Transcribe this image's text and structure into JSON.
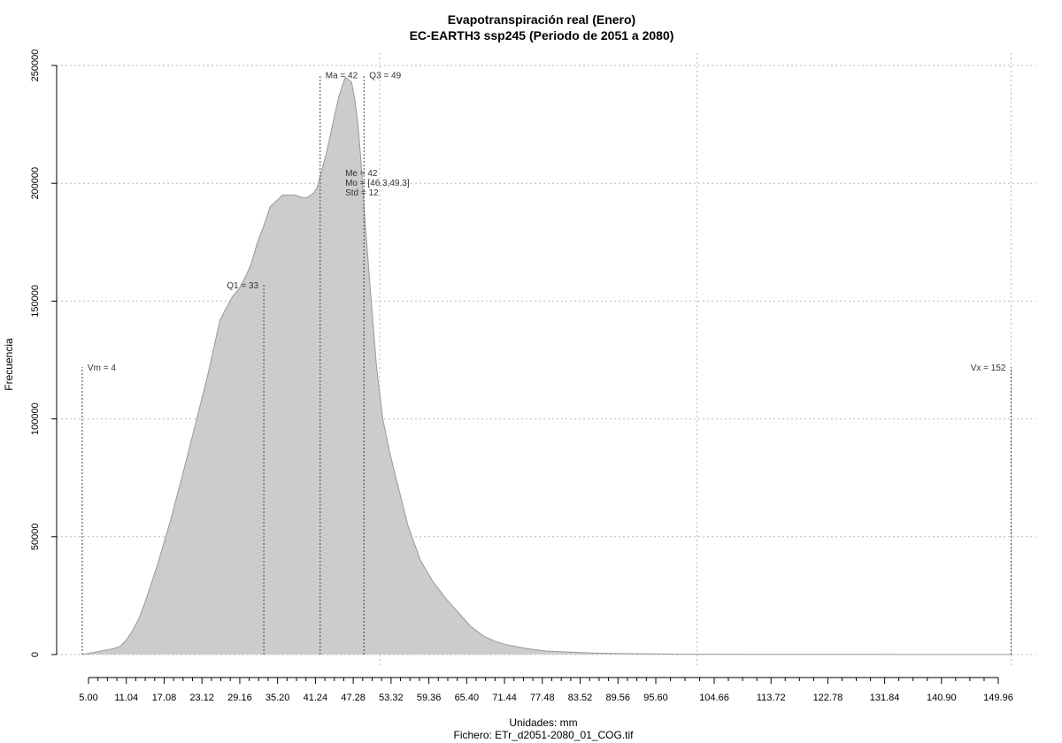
{
  "chart_data": {
    "type": "area",
    "title": "Evapotranspiración real (Enero)",
    "subtitle": "EC-EARTH3 ssp245 (Periodo de 2051 a 2080)",
    "xlabel": "Unidades: mm",
    "ylabel": "Frecuencia",
    "caption": "Fichero: ETr_d2051-2080_01_COG.tif",
    "xlim": [
      4,
      152
    ],
    "ylim": [
      0,
      250000
    ],
    "grid": true,
    "y_ticks": [
      0,
      50000,
      100000,
      150000,
      200000,
      250000
    ],
    "y_tick_labels": [
      "0",
      "50000",
      "100000",
      "150000",
      "200000",
      "250000"
    ],
    "x_ticks": [
      5.0,
      11.04,
      17.08,
      23.12,
      29.16,
      35.2,
      41.24,
      47.28,
      53.32,
      59.36,
      65.4,
      71.44,
      77.48,
      83.52,
      89.56,
      95.6,
      104.66,
      113.72,
      122.78,
      131.84,
      140.9,
      149.96
    ],
    "x_tick_labels": [
      "5.00",
      "11.04",
      "17.08",
      "23.12",
      "29.16",
      "35.20",
      "41.24",
      "47.28",
      "53.32",
      "59.36",
      "65.40",
      "71.44",
      "77.48",
      "83.52",
      "89.56",
      "95.60",
      "104.66",
      "113.72",
      "122.78",
      "131.84",
      "140.90",
      "149.96"
    ],
    "x_minor_ticks": [
      6.51,
      8.02,
      9.53,
      12.55,
      14.06,
      15.57,
      18.59,
      20.1,
      21.61,
      24.63,
      26.14,
      27.65,
      30.67,
      32.18,
      33.69,
      36.71,
      38.22,
      39.73,
      42.75,
      44.26,
      45.77,
      48.79,
      50.3,
      51.81,
      54.83,
      56.34,
      57.85,
      60.87,
      62.38,
      63.89,
      66.91,
      68.42,
      69.93,
      72.95,
      74.46,
      75.97,
      78.99,
      80.5,
      82.01,
      85.03,
      86.54,
      88.05,
      91.07,
      92.58,
      94.09,
      97.87,
      100.13,
      102.4,
      106.92,
      109.19,
      111.46,
      115.98,
      118.25,
      120.52,
      125.04,
      127.31,
      129.58,
      134.1,
      136.37,
      138.64,
      143.16,
      145.43,
      147.7
    ],
    "x_gridlines": [
      51.5,
      102.0,
      152.0
    ],
    "y_gridlines": [
      0,
      50000,
      100000,
      150000,
      200000,
      250000
    ],
    "series": [
      {
        "x": [
          4,
          5,
          7,
          9,
          10,
          11,
          12,
          13,
          14,
          15,
          16,
          17,
          18,
          20,
          22,
          24,
          26,
          28,
          29,
          30,
          31,
          32,
          33,
          34,
          36,
          38,
          39,
          40,
          41,
          41.5,
          42,
          43,
          44,
          45,
          46,
          47,
          47.5,
          48,
          48.5,
          49,
          50,
          51,
          52,
          53,
          54,
          56,
          58,
          60,
          62,
          64,
          66,
          68,
          70,
          72,
          75,
          78,
          82,
          86,
          90,
          95,
          100,
          110,
          120,
          130,
          140,
          150,
          152
        ],
        "y": [
          0,
          500,
          1500,
          2500,
          3500,
          6000,
          10000,
          15000,
          22000,
          30000,
          38000,
          47000,
          56000,
          76000,
          97000,
          118000,
          142000,
          152000,
          155000,
          160000,
          166000,
          175000,
          182000,
          190000,
          195000,
          195000,
          194000,
          194000,
          196000,
          198000,
          203000,
          213000,
          225000,
          237000,
          245000,
          243000,
          236000,
          226000,
          210000,
          190000,
          155000,
          122000,
          100000,
          87000,
          76000,
          55000,
          40000,
          31000,
          24000,
          18000,
          12000,
          8000,
          5500,
          4000,
          2500,
          1500,
          1000,
          600,
          400,
          250,
          150,
          100,
          80,
          60,
          40,
          30,
          0
        ]
      }
    ],
    "stat_lines": [
      {
        "x": 4,
        "y": 122000,
        "label": "Vm = 4",
        "label_side": "right"
      },
      {
        "x": 33,
        "y": 157000,
        "label": "Q1 = 33",
        "label_side": "left"
      },
      {
        "x": 42,
        "y": 246000,
        "label": "Ma = 42",
        "label_side": "right"
      },
      {
        "x": 49,
        "y": 246000,
        "label": "Q3 = 49",
        "label_side": "right"
      },
      {
        "x": 152,
        "y": 122000,
        "label": "Vx = 152",
        "label_side": "left"
      }
    ],
    "stats_box": [
      "Me = 42",
      "Mo = [46.3,49.3]",
      "Std = 12"
    ],
    "colors": {
      "fill": "#cccccc",
      "outline": "#999999",
      "grid": "#bbbbbb",
      "stat_line": "#444444"
    }
  }
}
